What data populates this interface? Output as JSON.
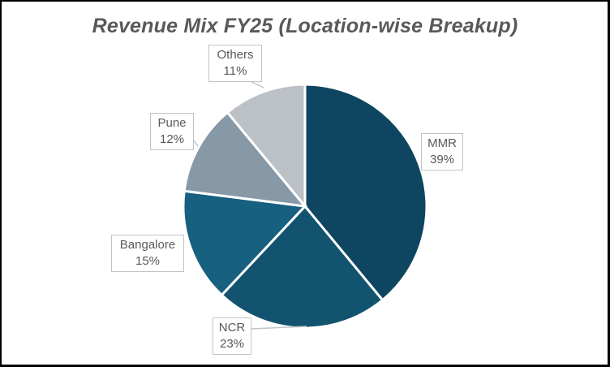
{
  "chart_data": {
    "type": "pie",
    "title": "Revenue Mix FY25 (Location-wise Breakup)",
    "categories": [
      "MMR",
      "NCR",
      "Bangalore",
      "Pune",
      "Others"
    ],
    "values": [
      39,
      23,
      15,
      12,
      11
    ],
    "unit": "%",
    "colors": [
      "#0e4560",
      "#12536f",
      "#17607f",
      "#8798a7",
      "#bcc1c6"
    ],
    "legend": "none",
    "data_labels": [
      {
        "name": "MMR",
        "value": "39%"
      },
      {
        "name": "NCR",
        "value": "23%"
      },
      {
        "name": "Bangalore",
        "value": "15%"
      },
      {
        "name": "Pune",
        "value": "12%"
      },
      {
        "name": "Others",
        "value": "11%"
      }
    ]
  }
}
